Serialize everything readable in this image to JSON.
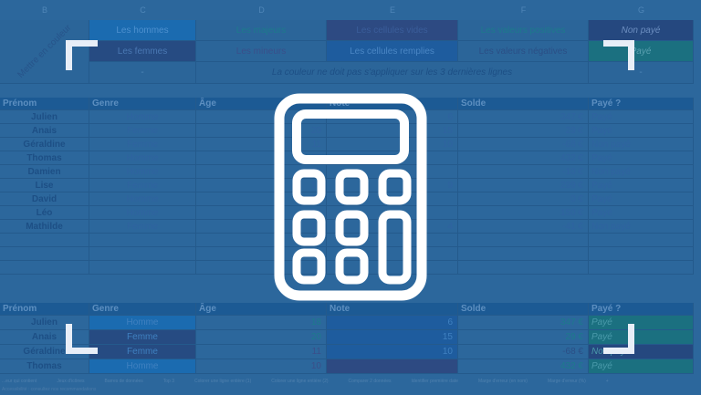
{
  "columns": [
    "B",
    "C",
    "D",
    "E",
    "F",
    "G"
  ],
  "legend": {
    "rotated_label": "Mettre en couleur",
    "row1": [
      "Les hommes",
      "Les majeurs",
      "Les cellules vides",
      "Les valeurs positives",
      "Non payé"
    ],
    "row2": [
      "Les femmes",
      "Les mineurs",
      "Les cellules remplies",
      "Les valeurs négatives",
      "Payé"
    ],
    "row3_c": "-",
    "note": "La couleur ne doit pas s'appliquer sur les 3 dernières lignes",
    "row3_g": "-"
  },
  "table": {
    "headers": [
      "Prénom",
      "Genre",
      "Âge",
      "Note",
      "Solde",
      "Payé ?"
    ],
    "rows": [
      [
        "Julien",
        "Homme",
        "18",
        "6",
        "347 €",
        "Payé"
      ],
      [
        "Anais",
        "Femme",
        "20",
        "15",
        "29 €",
        "Payé"
      ],
      [
        "Géraldine",
        "Femme",
        "11",
        "10",
        "-68 €",
        "Non payé"
      ],
      [
        "Thomas",
        "Homme",
        "10",
        "",
        "432 €",
        "Payé"
      ],
      [
        "Damien",
        "Homme",
        "15",
        "",
        "-10 €",
        "Non payé"
      ],
      [
        "Lise",
        "Femme",
        "18",
        "9",
        "299 €",
        "Payé"
      ],
      [
        "David",
        "Homme",
        "36",
        "",
        "0 €",
        "Payé"
      ],
      [
        "Léo",
        "Homme",
        "54",
        "",
        "150 €",
        "Payé"
      ],
      [
        "Mathilde",
        "Femme",
        "17",
        "4",
        "-41 €",
        "Non payé"
      ]
    ]
  },
  "table2": {
    "rows": [
      [
        "Julien",
        "Homme",
        "18",
        "6",
        "347 €",
        "Payé"
      ],
      [
        "Anais",
        "Femme",
        "20",
        "15",
        "29 €",
        "Payé"
      ],
      [
        "Géraldine",
        "Femme",
        "11",
        "10",
        "-68 €",
        "Non payé"
      ],
      [
        "Thomas",
        "Homme",
        "10",
        "",
        "432 €",
        "Payé"
      ]
    ]
  },
  "sheet_tabs": [
    "...eur qui contient",
    "Jeux d'icônes",
    "Barres de données",
    "Top 3",
    "Colorer une ligne entière (1)",
    "Colorer une ligne entière (2)",
    "Comparer 2 données",
    "Identifier première date",
    "Marge d'erreur (en nom)",
    "Marge d'erreur (%)",
    "+"
  ],
  "status": "Accessibilité : consultez nos recommandations",
  "icon": "calculator-icon",
  "colors": {
    "overlay": "#2c679c",
    "header": "#1c5a94",
    "icon": "#ffffff"
  }
}
